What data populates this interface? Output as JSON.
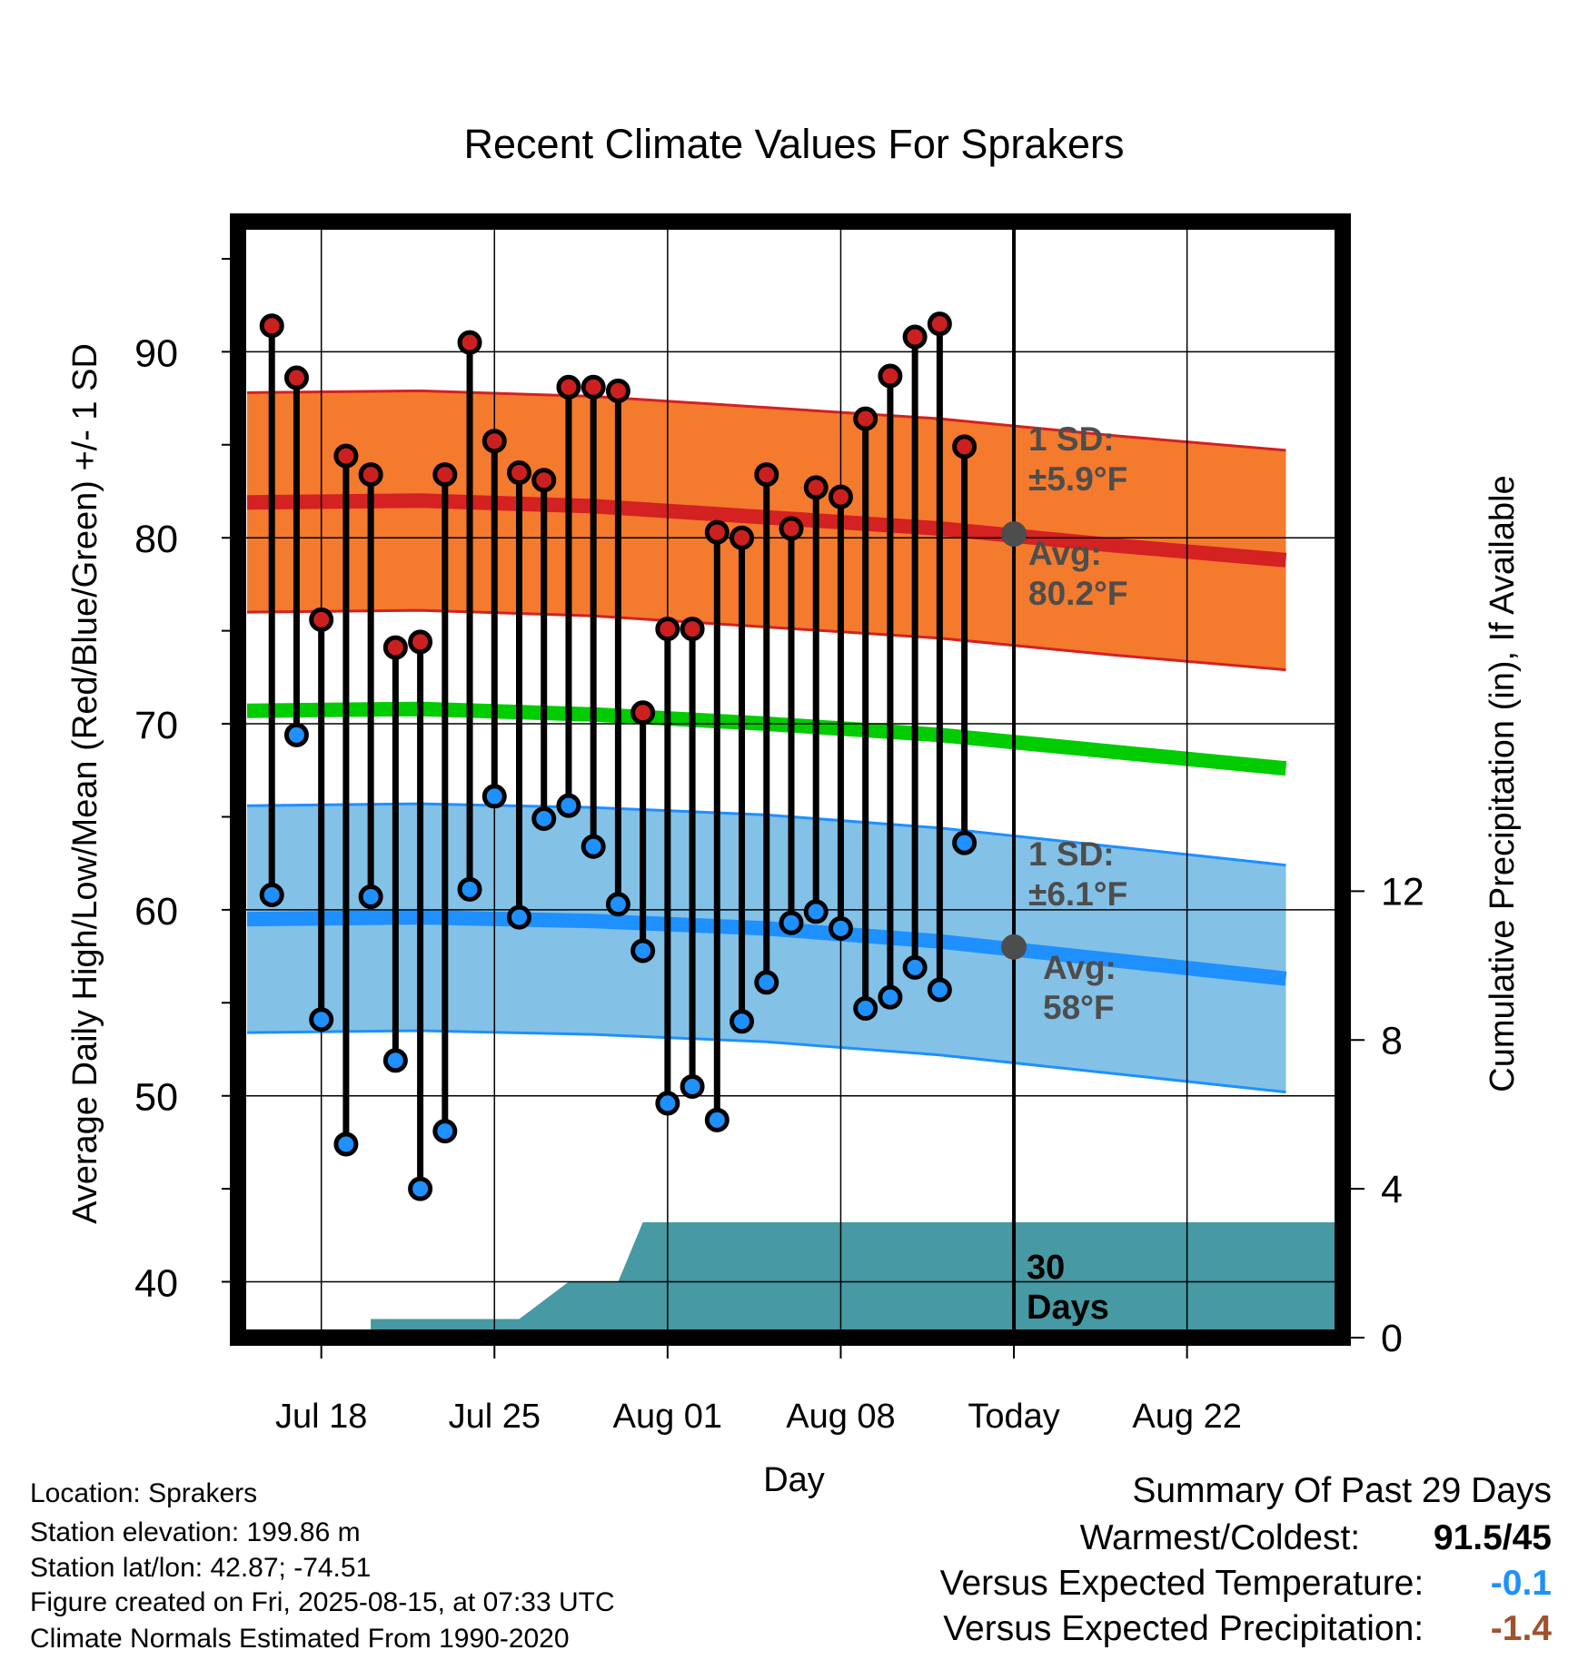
{
  "chart_data": {
    "type": "line",
    "title": "Recent Climate Values For Sprakers",
    "xlabel": "Day",
    "ylabel": "Average Daily High/Low/Mean (Red/Blue/Green) +/- 1 SD",
    "y2label": "Cumulative Precipitation (in), If Available",
    "ylim": [
      37,
      97
    ],
    "y2lim": [
      0,
      30
    ],
    "xlim": [
      "2025-07-15",
      "2025-08-28"
    ],
    "yticks": [
      40,
      50,
      60,
      70,
      80,
      90
    ],
    "y2ticks": [
      0,
      4,
      8,
      12
    ],
    "xticks": [
      {
        "date": "2025-07-18",
        "label": "Jul 18"
      },
      {
        "date": "2025-07-25",
        "label": "Jul 25"
      },
      {
        "date": "2025-08-01",
        "label": "Aug 01"
      },
      {
        "date": "2025-08-08",
        "label": "Aug 08"
      },
      {
        "date": "2025-08-15",
        "label": "Today"
      },
      {
        "date": "2025-08-22",
        "label": "Aug 22"
      }
    ],
    "grid": true,
    "today": "2025-08-15",
    "today_window_label": [
      "30",
      "Days"
    ],
    "daily": {
      "dates": [
        "2025-07-16",
        "2025-07-17",
        "2025-07-18",
        "2025-07-19",
        "2025-07-20",
        "2025-07-21",
        "2025-07-22",
        "2025-07-23",
        "2025-07-24",
        "2025-07-25",
        "2025-07-26",
        "2025-07-27",
        "2025-07-28",
        "2025-07-29",
        "2025-07-30",
        "2025-07-31",
        "2025-08-01",
        "2025-08-02",
        "2025-08-03",
        "2025-08-04",
        "2025-08-05",
        "2025-08-06",
        "2025-08-07",
        "2025-08-08",
        "2025-08-09",
        "2025-08-10",
        "2025-08-11",
        "2025-08-12",
        "2025-08-13"
      ],
      "highs": [
        91.4,
        88.6,
        75.6,
        84.4,
        83.4,
        74.1,
        74.4,
        83.4,
        90.5,
        85.2,
        83.5,
        83.1,
        88.1,
        88.1,
        87.9,
        70.6,
        75.1,
        75.1,
        80.3,
        80.0,
        83.4,
        80.5,
        82.7,
        82.2,
        86.4,
        88.7,
        90.8,
        91.5,
        84.9
      ],
      "lows": [
        60.8,
        69.4,
        54.1,
        47.4,
        60.7,
        51.9,
        45.0,
        48.1,
        61.1,
        66.1,
        59.6,
        64.9,
        65.6,
        63.4,
        60.3,
        57.8,
        49.6,
        50.5,
        48.7,
        54.0,
        56.1,
        59.3,
        59.9,
        59.0,
        54.7,
        55.3,
        56.9,
        55.7,
        63.6
      ]
    },
    "normals": {
      "dates": [
        "2025-07-15",
        "2025-07-22",
        "2025-07-29",
        "2025-08-05",
        "2025-08-12",
        "2025-08-19",
        "2025-08-26"
      ],
      "avg_high": [
        81.9,
        82.0,
        81.7,
        81.1,
        80.5,
        79.6,
        78.8
      ],
      "avg_low": [
        59.5,
        59.6,
        59.4,
        59.0,
        58.3,
        57.3,
        56.3
      ],
      "avg_mean": [
        70.7,
        70.8,
        70.5,
        70.0,
        69.4,
        68.5,
        67.6
      ],
      "sd_high": 5.9,
      "sd_low": 6.1
    },
    "precip": {
      "dates": [
        "2025-07-15",
        "2025-07-20",
        "2025-07-20",
        "2025-07-26",
        "2025-07-28",
        "2025-07-30",
        "2025-07-31",
        "2025-08-28"
      ],
      "values": [
        0,
        0,
        0.5,
        0.5,
        1.5,
        1.5,
        3.1,
        3.1
      ]
    },
    "annotations": {
      "high_sd": [
        "1 SD:",
        "±5.9°F"
      ],
      "high_avg": [
        "Avg:",
        "80.2°F"
      ],
      "low_sd": [
        "1 SD:",
        "±6.1°F"
      ],
      "low_avg": [
        "Avg:",
        "58°F"
      ],
      "today_high_avg": 80.2,
      "today_low_avg": 58
    },
    "colors": {
      "high_band": "#f47a2e",
      "high_line": "#d42121",
      "low_band": "#83c1e7",
      "low_line": "#1e90ff",
      "mean_line": "#00cc00",
      "precip": "#4799a3",
      "high_marker": "#cc2020",
      "low_marker": "#1e90ff",
      "annotation": "#4d4d4d"
    }
  },
  "info": {
    "location": "Location: Sprakers",
    "elevation": "Station elevation: 199.86 m",
    "latlon": "Station lat/lon: 42.87; -74.51",
    "created": "Figure created on Fri, 2025-08-15, at 07:33 UTC",
    "normals": "Climate Normals Estimated From 1990-2020"
  },
  "summary": {
    "title": "Summary Of Past 29 Days",
    "warm_cold_label": "Warmest/Coldest:",
    "warm_cold_value": "91.5/45",
    "temp_label": "Versus Expected Temperature:",
    "temp_value": "-0.1",
    "temp_color": "#1e90ff",
    "precip_label": "Versus Expected Precipitation:",
    "precip_value": "-1.4",
    "precip_color": "#a0522d"
  }
}
